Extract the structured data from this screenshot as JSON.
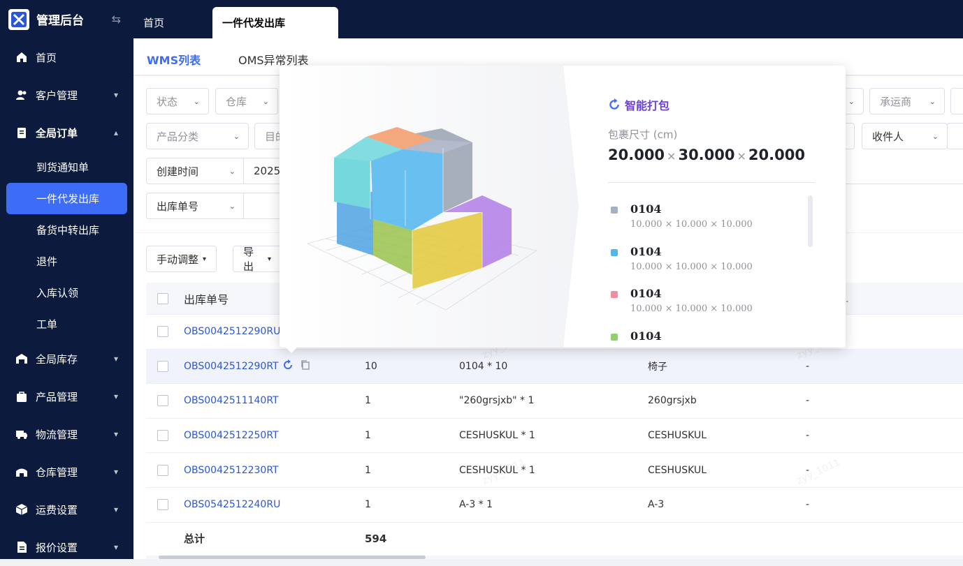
{
  "app": {
    "title": "管理后台"
  },
  "top_tabs": [
    {
      "label": "首页"
    },
    {
      "label": "一件代发出库"
    }
  ],
  "sidebar": {
    "items": [
      {
        "label": "首页",
        "icon": "home-icon"
      },
      {
        "label": "客户管理",
        "icon": "users-icon"
      },
      {
        "label": "全局订单",
        "icon": "clipboard-icon"
      },
      {
        "label": "全局库存",
        "icon": "warehouse-icon"
      },
      {
        "label": "产品管理",
        "icon": "bag-icon"
      },
      {
        "label": "物流管理",
        "icon": "truck-icon"
      },
      {
        "label": "仓库管理",
        "icon": "storehouse-icon"
      },
      {
        "label": "运费设置",
        "icon": "cube-icon"
      },
      {
        "label": "报价设置",
        "icon": "file-icon"
      }
    ],
    "sub_items": [
      {
        "label": "到货通知单"
      },
      {
        "label": "一件代发出库"
      },
      {
        "label": "备货中转出库"
      },
      {
        "label": "退件"
      },
      {
        "label": "入库认领"
      },
      {
        "label": "工单"
      }
    ]
  },
  "subtabs": [
    {
      "label": "WMS列表"
    },
    {
      "label": "OMS异常列表"
    }
  ],
  "filters": {
    "status": "状态",
    "warehouse": "仓库",
    "carrier": "承运商",
    "product_category": "产品分类",
    "destination_partial": "目的",
    "recipient": "收件人",
    "created_time": "创建时间",
    "date_partial": "2025",
    "outbound_no": "出库单号"
  },
  "toolbar": {
    "manual_adjust": "手动调整",
    "export": "导出"
  },
  "table": {
    "header": {
      "outbound_no": "出库单号"
    },
    "rows": [
      {
        "no": "OBS0042512290RU",
        "qty": "",
        "sku": "",
        "name": "",
        "extra": ""
      },
      {
        "no": "OBS0042512290RT",
        "qty": "10",
        "sku": "0104 * 10",
        "name": "椅子",
        "extra": "-"
      },
      {
        "no": "OBS0042511140RT",
        "qty": "1",
        "sku": "\"260grsjxb\" * 1",
        "name": "260grsjxb",
        "extra": "-"
      },
      {
        "no": "OBS0042512250RT",
        "qty": "1",
        "sku": "CESHUSKUL * 1",
        "name": "CESHUSKUL",
        "extra": "-"
      },
      {
        "no": "OBS0042512230RT",
        "qty": "1",
        "sku": "CESHUSKUL * 1",
        "name": "CESHUSKUL",
        "extra": "-"
      },
      {
        "no": "OBS0542512240RU",
        "qty": "1",
        "sku": "A-3 * 1",
        "name": "A-3",
        "extra": "-"
      }
    ],
    "total_label": "总计",
    "total_qty": "594"
  },
  "popover": {
    "title": "智能打包",
    "dim_label": "包裹尺寸 (cm)",
    "dim_l": "20.000",
    "dim_w": "30.000",
    "dim_h": "20.000",
    "dim_sep": "×",
    "items": [
      {
        "name": "0104",
        "size": "10.000 × 10.000 × 10.000",
        "color": "#a6b0c3"
      },
      {
        "name": "0104",
        "size": "10.000 × 10.000 × 10.000",
        "color": "#4fb6ef"
      },
      {
        "name": "0104",
        "size": "10.000 × 10.000 × 10.000",
        "color": "#f28ca0"
      },
      {
        "name": "0104",
        "size": "",
        "color": "#8fd16a"
      }
    ]
  },
  "watermark": "zyy_1011",
  "colors": {
    "sidebar_bg": "#0c1a3d",
    "accent": "#3d6cf6",
    "link": "#2b57d6",
    "pack_title": "#6c3fe0"
  }
}
